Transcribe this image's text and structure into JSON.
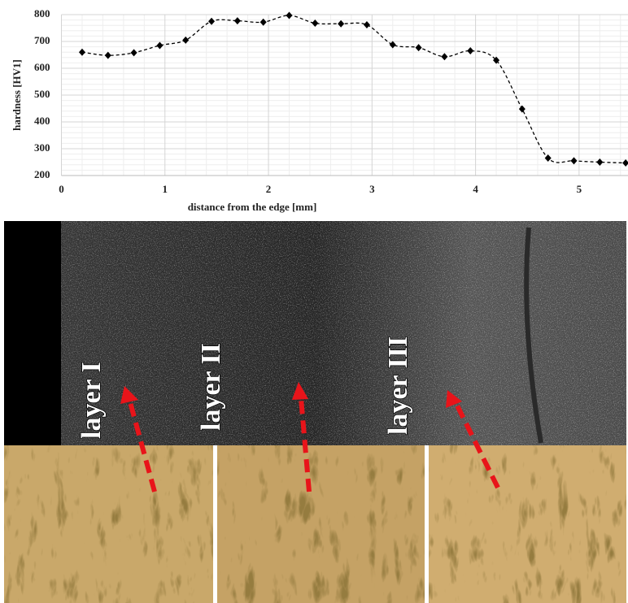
{
  "chart_data": {
    "type": "line",
    "xlabel": "distance from the edge [mm]",
    "ylabel": "hardness [HV1]",
    "x": [
      0.2,
      0.45,
      0.7,
      0.95,
      1.2,
      1.45,
      1.7,
      1.95,
      2.2,
      2.45,
      2.7,
      2.95,
      3.2,
      3.45,
      3.7,
      3.95,
      4.2,
      4.45,
      4.7,
      4.95,
      5.2,
      5.45
    ],
    "values": [
      660,
      648,
      658,
      685,
      705,
      775,
      777,
      772,
      797,
      768,
      766,
      762,
      688,
      677,
      643,
      665,
      630,
      448,
      265,
      255,
      250,
      247
    ],
    "color": "#000000",
    "xlim": [
      0,
      5.5
    ],
    "xticks": [
      0,
      1,
      2,
      3,
      4,
      5
    ],
    "ylim": [
      200,
      800
    ],
    "yticks": [
      200,
      300,
      400,
      500,
      600,
      700,
      800
    ],
    "grid": true
  },
  "micrograph": {
    "labels": [
      "layer I",
      "layer II",
      "layer III"
    ]
  }
}
